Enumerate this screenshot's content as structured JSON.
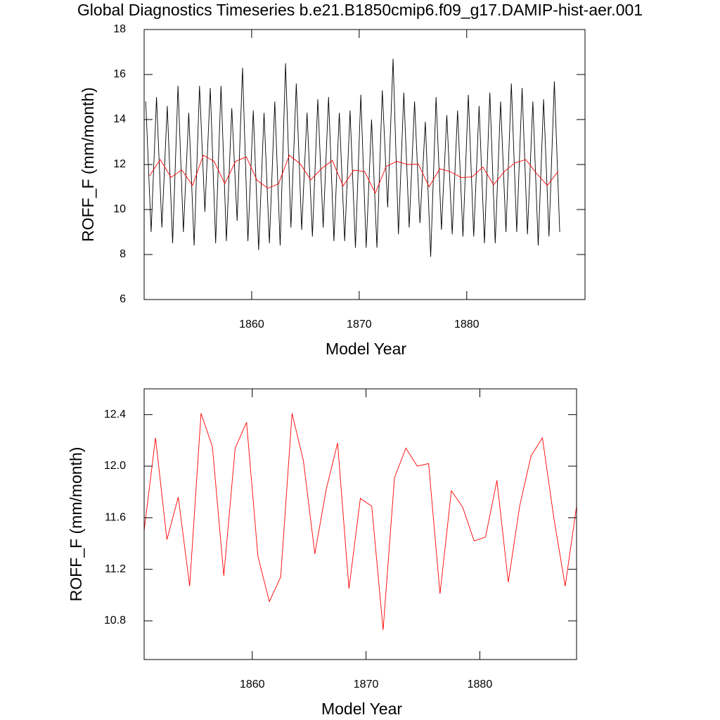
{
  "chart_data": [
    {
      "type": "line",
      "title": "Global Diagnostics Timeseries b.e21.B1850cmip6.f09_g17.DAMIP-hist-aer.001",
      "x_label": "Model Year",
      "y_label": "ROFF_F (mm/month)",
      "xlim": [
        1850,
        1891
      ],
      "xticks": [
        1860,
        1870,
        1880
      ],
      "ylim": [
        6,
        18
      ],
      "yticks": [
        6,
        8,
        10,
        12,
        14,
        16,
        18
      ],
      "series": [
        {
          "color": "#000000",
          "x": [
            1850.15,
            1850.65,
            1851.15,
            1851.65,
            1852.15,
            1852.65,
            1853.15,
            1853.65,
            1854.15,
            1854.65,
            1855.15,
            1855.65,
            1856.15,
            1856.65,
            1857.15,
            1857.65,
            1858.15,
            1858.65,
            1859.15,
            1859.65,
            1860.15,
            1860.65,
            1861.15,
            1861.65,
            1862.15,
            1862.65,
            1863.15,
            1863.65,
            1864.15,
            1864.65,
            1865.15,
            1865.65,
            1866.15,
            1866.65,
            1867.15,
            1867.65,
            1868.15,
            1868.65,
            1869.15,
            1869.65,
            1870.15,
            1870.65,
            1871.15,
            1871.65,
            1872.15,
            1872.65,
            1873.15,
            1873.65,
            1874.15,
            1874.65,
            1875.15,
            1875.65,
            1876.15,
            1876.65,
            1877.15,
            1877.65,
            1878.15,
            1878.65,
            1879.15,
            1879.65,
            1880.15,
            1880.65,
            1881.15,
            1881.65,
            1882.15,
            1882.65,
            1883.15,
            1883.65,
            1884.15,
            1884.65,
            1885.15,
            1885.65,
            1886.15,
            1886.65,
            1887.15,
            1887.65,
            1888.15,
            1888.65
          ],
          "values": [
            14.8,
            9.0,
            15.0,
            9.2,
            14.6,
            8.5,
            15.5,
            9.0,
            14.3,
            8.4,
            15.5,
            9.9,
            15.4,
            8.5,
            15.5,
            8.6,
            14.5,
            9.5,
            16.3,
            8.6,
            14.4,
            8.2,
            14.3,
            8.5,
            14.8,
            8.4,
            16.5,
            9.2,
            15.6,
            9.1,
            14.3,
            8.8,
            14.9,
            9.2,
            15.0,
            8.6,
            14.3,
            8.6,
            14.4,
            8.3,
            15.1,
            8.3,
            14.0,
            8.3,
            15.3,
            10.1,
            16.7,
            8.9,
            15.2,
            9.2,
            14.8,
            9.4,
            13.9,
            7.9,
            15.0,
            9.1,
            14.2,
            8.9,
            14.4,
            8.8,
            15.1,
            8.8,
            14.6,
            8.5,
            15.2,
            8.5,
            14.8,
            9.0,
            15.6,
            9.0,
            15.4,
            8.9,
            14.8,
            8.4,
            14.9,
            8.8,
            15.7,
            9.0
          ]
        },
        {
          "color": "#ff0000",
          "x": [
            1850.5,
            1851.5,
            1852.5,
            1853.5,
            1854.5,
            1855.5,
            1856.5,
            1857.5,
            1858.5,
            1859.5,
            1860.5,
            1861.5,
            1862.5,
            1863.5,
            1864.5,
            1865.5,
            1866.5,
            1867.5,
            1868.5,
            1869.5,
            1870.5,
            1871.5,
            1872.5,
            1873.5,
            1874.5,
            1875.5,
            1876.5,
            1877.5,
            1878.5,
            1879.5,
            1880.5,
            1881.5,
            1882.5,
            1883.5,
            1884.5,
            1885.5,
            1886.5,
            1887.5,
            1888.5
          ],
          "values": [
            11.5,
            12.22,
            11.43,
            11.76,
            11.07,
            12.41,
            12.15,
            11.15,
            12.14,
            12.34,
            11.3,
            10.95,
            11.14,
            12.41,
            12.04,
            11.32,
            11.82,
            12.18,
            11.05,
            11.75,
            11.69,
            10.73,
            11.91,
            12.14,
            12.0,
            12.02,
            11.01,
            11.81,
            11.68,
            11.42,
            11.45,
            11.89,
            11.1,
            11.69,
            12.08,
            12.22,
            11.6,
            11.07,
            11.69
          ]
        }
      ]
    },
    {
      "type": "line",
      "x_label": "Model Year",
      "y_label": "ROFF_F (mm/month)",
      "xlim": [
        1850.5,
        1888.5
      ],
      "xticks": [
        1860,
        1870,
        1880
      ],
      "ylim": [
        10.5,
        12.6
      ],
      "yticks": [
        10.8,
        11.2,
        11.6,
        {
          "value": 12,
          "label": "12.0"
        },
        12.4
      ],
      "series": [
        {
          "color": "#ff0000",
          "x": [
            1850.5,
            1851.5,
            1852.5,
            1853.5,
            1854.5,
            1855.5,
            1856.5,
            1857.5,
            1858.5,
            1859.5,
            1860.5,
            1861.5,
            1862.5,
            1863.5,
            1864.5,
            1865.5,
            1866.5,
            1867.5,
            1868.5,
            1869.5,
            1870.5,
            1871.5,
            1872.5,
            1873.5,
            1874.5,
            1875.5,
            1876.5,
            1877.5,
            1878.5,
            1879.5,
            1880.5,
            1881.5,
            1882.5,
            1883.5,
            1884.5,
            1885.5,
            1886.5,
            1887.5,
            1888.5
          ],
          "values": [
            11.5,
            12.22,
            11.43,
            11.76,
            11.07,
            12.41,
            12.15,
            11.15,
            12.14,
            12.34,
            11.3,
            10.95,
            11.14,
            12.41,
            12.04,
            11.32,
            11.82,
            12.18,
            11.05,
            11.75,
            11.69,
            10.73,
            11.91,
            12.14,
            12.0,
            12.02,
            11.01,
            11.81,
            11.68,
            11.42,
            11.45,
            11.89,
            11.1,
            11.69,
            12.08,
            12.22,
            11.6,
            11.07,
            11.69
          ]
        }
      ]
    }
  ]
}
